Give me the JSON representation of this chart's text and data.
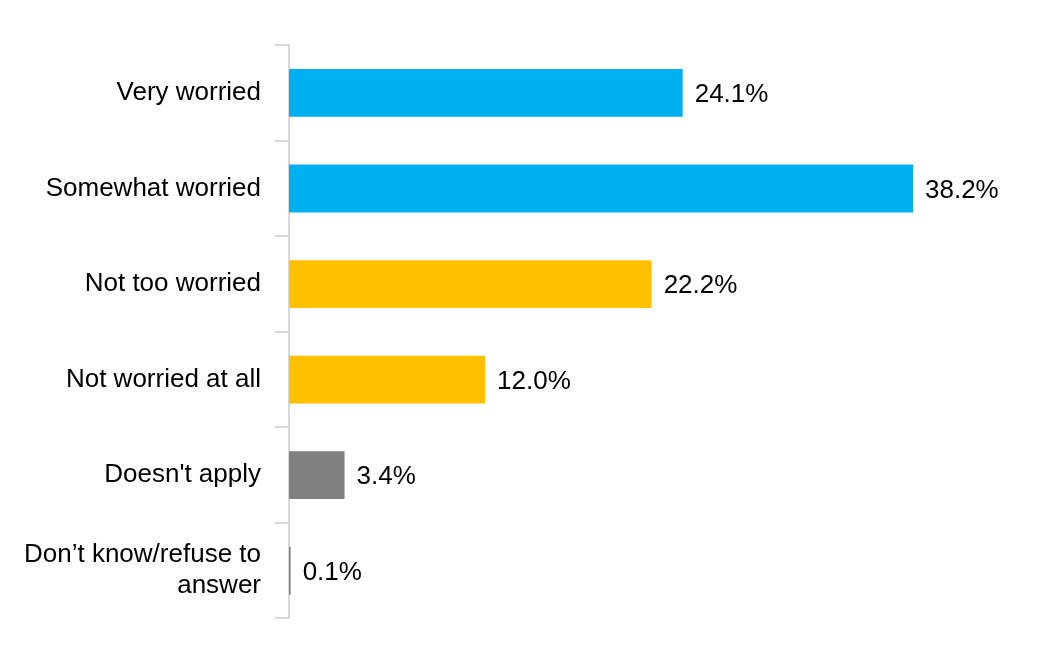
{
  "chart_data": {
    "type": "bar",
    "orientation": "horizontal",
    "categories": [
      "Very worried",
      "Somewhat worried",
      "Not too worried",
      "Not worried at all",
      "Doesn't apply",
      "Don’t know/refuse to answer"
    ],
    "values": [
      24.1,
      38.2,
      22.2,
      12.0,
      3.4,
      0.1
    ],
    "value_labels": [
      "24.1%",
      "38.2%",
      "22.2%",
      "12.0%",
      "3.4%",
      "0.1%"
    ],
    "colors": [
      "#00b0f0",
      "#00b0f0",
      "#ffc000",
      "#ffc000",
      "#808080",
      "#808080"
    ],
    "legend": false
  }
}
